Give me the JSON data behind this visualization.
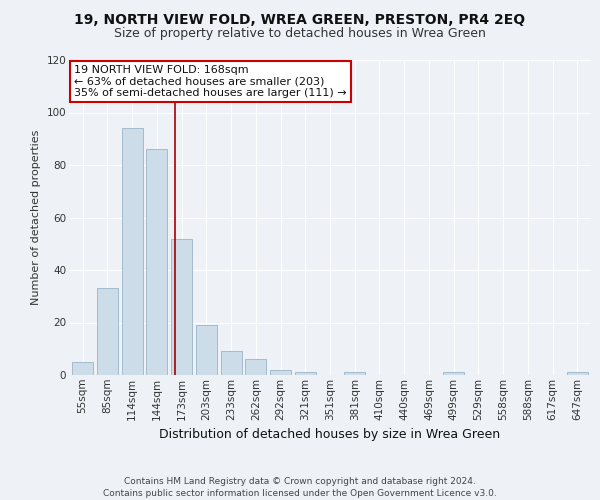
{
  "title": "19, NORTH VIEW FOLD, WREA GREEN, PRESTON, PR4 2EQ",
  "subtitle": "Size of property relative to detached houses in Wrea Green",
  "xlabel": "Distribution of detached houses by size in Wrea Green",
  "ylabel": "Number of detached properties",
  "categories": [
    "55sqm",
    "85sqm",
    "114sqm",
    "144sqm",
    "173sqm",
    "203sqm",
    "233sqm",
    "262sqm",
    "292sqm",
    "321sqm",
    "351sqm",
    "381sqm",
    "410sqm",
    "440sqm",
    "469sqm",
    "499sqm",
    "529sqm",
    "558sqm",
    "588sqm",
    "617sqm",
    "647sqm"
  ],
  "values": [
    5,
    33,
    94,
    86,
    52,
    19,
    9,
    6,
    2,
    1,
    0,
    1,
    0,
    0,
    0,
    1,
    0,
    0,
    0,
    0,
    1
  ],
  "bar_color": "#ccdce8",
  "bar_edge_color": "#9ab4c8",
  "vline_x": 3.72,
  "annotation_line1": "19 NORTH VIEW FOLD: 168sqm",
  "annotation_line2": "← 63% of detached houses are smaller (203)",
  "annotation_line3": "35% of semi-detached houses are larger (111) →",
  "annotation_box_color": "#ffffff",
  "annotation_box_edge_color": "#cc0000",
  "vline_color": "#aa0000",
  "ylim": [
    0,
    120
  ],
  "yticks": [
    0,
    20,
    40,
    60,
    80,
    100,
    120
  ],
  "background_color": "#eef2f7",
  "plot_bg_color": "#eef2f7",
  "grid_color": "#ffffff",
  "footer1": "Contains HM Land Registry data © Crown copyright and database right 2024.",
  "footer2": "Contains public sector information licensed under the Open Government Licence v3.0.",
  "title_fontsize": 10,
  "subtitle_fontsize": 9,
  "xlabel_fontsize": 9,
  "ylabel_fontsize": 8,
  "tick_fontsize": 7.5,
  "footer_fontsize": 6.5,
  "annotation_fontsize": 8
}
